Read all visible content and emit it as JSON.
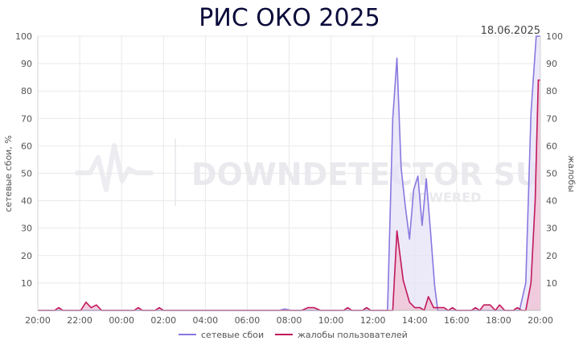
{
  "chart_data": {
    "type": "line",
    "title": "РИС ОКО 2025",
    "date": "18.06.2025",
    "ylabel_left": "сетевые сбои, %",
    "ylabel_right": "жалобы",
    "ylim": [
      0,
      100
    ],
    "yticks": [
      10,
      20,
      30,
      40,
      50,
      60,
      70,
      80,
      90,
      100
    ],
    "xlim": [
      0,
      24
    ],
    "xticks": [
      {
        "x": 0,
        "label": "20:00"
      },
      {
        "x": 2,
        "label": "22:00"
      },
      {
        "x": 4,
        "label": "00:00"
      },
      {
        "x": 6,
        "label": "02:00"
      },
      {
        "x": 8,
        "label": "04:00"
      },
      {
        "x": 10,
        "label": "06:00"
      },
      {
        "x": 12,
        "label": "08:00"
      },
      {
        "x": 14,
        "label": "10:00"
      },
      {
        "x": 16,
        "label": "12:00"
      },
      {
        "x": 18,
        "label": "14:00"
      },
      {
        "x": 20,
        "label": "16:00"
      },
      {
        "x": 22,
        "label": "18:00"
      },
      {
        "x": 24,
        "label": "20:00"
      }
    ],
    "watermark": {
      "main": "DOWNDETECTOR SU",
      "sub": "POWERED"
    },
    "series": [
      {
        "name": "сетевые сбои",
        "color": "#8878e0",
        "fill": "#e6e1f7",
        "points": [
          [
            0,
            0
          ],
          [
            11.5,
            0
          ],
          [
            11.8,
            0.5
          ],
          [
            12.1,
            0
          ],
          [
            16.4,
            0
          ],
          [
            16.7,
            0
          ],
          [
            16.95,
            70
          ],
          [
            17.15,
            92
          ],
          [
            17.35,
            52
          ],
          [
            17.55,
            38
          ],
          [
            17.75,
            26
          ],
          [
            17.95,
            44
          ],
          [
            18.15,
            49
          ],
          [
            18.35,
            31
          ],
          [
            18.55,
            48
          ],
          [
            18.75,
            29
          ],
          [
            18.95,
            9
          ],
          [
            19.1,
            0
          ],
          [
            23.0,
            0
          ],
          [
            23.3,
            10
          ],
          [
            23.55,
            72
          ],
          [
            23.8,
            100
          ],
          [
            24,
            100
          ]
        ]
      },
      {
        "name": "жалобы пользователей",
        "color": "#c2185b",
        "fill": "#f0c6d8",
        "points": [
          [
            0,
            0
          ],
          [
            0.8,
            0
          ],
          [
            1.0,
            1
          ],
          [
            1.2,
            0
          ],
          [
            2.05,
            0
          ],
          [
            2.3,
            3
          ],
          [
            2.55,
            1
          ],
          [
            2.8,
            2
          ],
          [
            3.05,
            0
          ],
          [
            4.6,
            0
          ],
          [
            4.8,
            1
          ],
          [
            5.0,
            0
          ],
          [
            5.6,
            0
          ],
          [
            5.8,
            1
          ],
          [
            6.0,
            0
          ],
          [
            12.6,
            0
          ],
          [
            12.9,
            1
          ],
          [
            13.2,
            1
          ],
          [
            13.5,
            0
          ],
          [
            14.6,
            0
          ],
          [
            14.8,
            1
          ],
          [
            15.0,
            0
          ],
          [
            15.5,
            0
          ],
          [
            15.7,
            1
          ],
          [
            15.9,
            0
          ],
          [
            16.4,
            0
          ],
          [
            16.95,
            0
          ],
          [
            17.15,
            29
          ],
          [
            17.45,
            11
          ],
          [
            17.75,
            3
          ],
          [
            18.0,
            1
          ],
          [
            18.25,
            1
          ],
          [
            18.45,
            0
          ],
          [
            18.65,
            5
          ],
          [
            18.9,
            1
          ],
          [
            19.4,
            1
          ],
          [
            19.6,
            0
          ],
          [
            19.8,
            1
          ],
          [
            20.0,
            0
          ],
          [
            20.7,
            0
          ],
          [
            20.9,
            1
          ],
          [
            21.1,
            0
          ],
          [
            21.3,
            2
          ],
          [
            21.6,
            2
          ],
          [
            21.85,
            0
          ],
          [
            22.05,
            2
          ],
          [
            22.3,
            0
          ],
          [
            22.7,
            0
          ],
          [
            22.9,
            1
          ],
          [
            23.1,
            0
          ],
          [
            23.3,
            0
          ],
          [
            23.55,
            10
          ],
          [
            23.75,
            40
          ],
          [
            23.9,
            84
          ],
          [
            24,
            84
          ]
        ]
      }
    ]
  }
}
